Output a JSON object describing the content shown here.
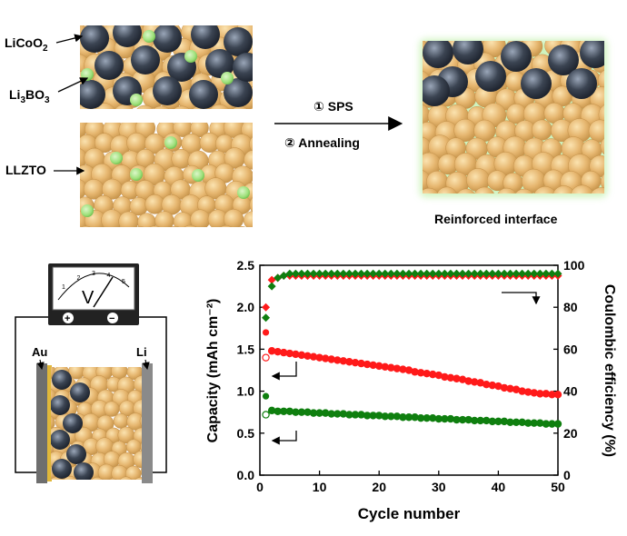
{
  "labels": {
    "licoo2": "LiCoO",
    "licoo2_sub": "2",
    "li3bo3_a": "Li",
    "li3bo3_b": "3",
    "li3bo3_c": "BO",
    "li3bo3_d": "3",
    "llzto": "LLZTO",
    "step1": "①  SPS",
    "step2": "②  Annealing",
    "reinforced": "Reinforced interface",
    "au": "Au",
    "li": "Li",
    "meter_v": "V",
    "meter_plus": "+",
    "meter_minus": "−",
    "meter_scale": [
      "1",
      "2",
      "3",
      "4",
      "5"
    ]
  },
  "colors": {
    "particle_gold": "#e6b66f",
    "particle_dark": "#3b4452",
    "particle_green": "#9ee07a",
    "interface_glow": "#a8ea8a",
    "gold_plate": "#e0b73a",
    "li_plate": "#8a8a8a",
    "series_red": "#ff1a1a",
    "series_green": "#0f7f0f"
  },
  "chart_data": {
    "type": "scatter",
    "xlabel": "Cycle number",
    "ylabel_left": "Capacity (mAh cm⁻²)",
    "ylabel_right": "Coulombic efficiency (%)",
    "xlim": [
      0,
      50
    ],
    "ylim_left": [
      0.0,
      2.5
    ],
    "ylim_right": [
      0,
      100
    ],
    "xticks": [
      "0",
      "10",
      "20",
      "30",
      "40",
      "50"
    ],
    "yticks_left": [
      "0.0",
      "0.5",
      "1.0",
      "1.5",
      "2.0",
      "2.5"
    ],
    "yticks_right": [
      "0",
      "20",
      "40",
      "60",
      "80",
      "100"
    ],
    "series": [
      {
        "color": "#ff1a1a",
        "axis": "left",
        "marker": "open-circle",
        "points": [
          [
            1,
            1.4
          ],
          [
            2,
            1.48
          ],
          [
            3,
            1.47
          ],
          [
            4,
            1.46
          ],
          [
            5,
            1.45
          ],
          [
            6,
            1.44
          ],
          [
            7,
            1.43
          ],
          [
            8,
            1.42
          ],
          [
            9,
            1.41
          ],
          [
            10,
            1.4
          ],
          [
            11,
            1.39
          ],
          [
            12,
            1.38
          ],
          [
            13,
            1.37
          ],
          [
            14,
            1.36
          ],
          [
            15,
            1.35
          ],
          [
            16,
            1.34
          ],
          [
            17,
            1.33
          ],
          [
            18,
            1.32
          ],
          [
            19,
            1.31
          ],
          [
            20,
            1.3
          ],
          [
            21,
            1.29
          ],
          [
            22,
            1.28
          ],
          [
            23,
            1.27
          ],
          [
            24,
            1.26
          ],
          [
            25,
            1.25
          ],
          [
            26,
            1.23
          ],
          [
            27,
            1.22
          ],
          [
            28,
            1.21
          ],
          [
            29,
            1.2
          ],
          [
            30,
            1.19
          ],
          [
            31,
            1.17
          ],
          [
            32,
            1.16
          ],
          [
            33,
            1.15
          ],
          [
            34,
            1.14
          ],
          [
            35,
            1.12
          ],
          [
            36,
            1.11
          ],
          [
            37,
            1.1
          ],
          [
            38,
            1.08
          ],
          [
            39,
            1.07
          ],
          [
            40,
            1.06
          ],
          [
            41,
            1.04
          ],
          [
            42,
            1.03
          ],
          [
            43,
            1.02
          ],
          [
            44,
            1.0
          ],
          [
            45,
            0.99
          ],
          [
            46,
            0.98
          ],
          [
            47,
            0.97
          ],
          [
            48,
            0.97
          ],
          [
            49,
            0.96
          ],
          [
            50,
            0.96
          ]
        ]
      },
      {
        "color": "#ff1a1a",
        "axis": "left",
        "marker": "filled-circle",
        "points": [
          [
            1,
            1.7
          ],
          [
            2,
            1.48
          ],
          [
            3,
            1.47
          ],
          [
            4,
            1.46
          ],
          [
            5,
            1.45
          ],
          [
            6,
            1.44
          ],
          [
            7,
            1.43
          ],
          [
            8,
            1.42
          ],
          [
            9,
            1.41
          ],
          [
            10,
            1.4
          ],
          [
            11,
            1.39
          ],
          [
            12,
            1.38
          ],
          [
            13,
            1.37
          ],
          [
            14,
            1.36
          ],
          [
            15,
            1.35
          ],
          [
            16,
            1.34
          ],
          [
            17,
            1.33
          ],
          [
            18,
            1.32
          ],
          [
            19,
            1.31
          ],
          [
            20,
            1.3
          ],
          [
            21,
            1.29
          ],
          [
            22,
            1.28
          ],
          [
            23,
            1.27
          ],
          [
            24,
            1.26
          ],
          [
            25,
            1.25
          ],
          [
            26,
            1.23
          ],
          [
            27,
            1.22
          ],
          [
            28,
            1.21
          ],
          [
            29,
            1.2
          ],
          [
            30,
            1.19
          ],
          [
            31,
            1.17
          ],
          [
            32,
            1.16
          ],
          [
            33,
            1.15
          ],
          [
            34,
            1.14
          ],
          [
            35,
            1.12
          ],
          [
            36,
            1.11
          ],
          [
            37,
            1.1
          ],
          [
            38,
            1.08
          ],
          [
            39,
            1.07
          ],
          [
            40,
            1.06
          ],
          [
            41,
            1.04
          ],
          [
            42,
            1.03
          ],
          [
            43,
            1.02
          ],
          [
            44,
            1.0
          ],
          [
            45,
            0.99
          ],
          [
            46,
            0.98
          ],
          [
            47,
            0.97
          ],
          [
            48,
            0.97
          ],
          [
            49,
            0.96
          ],
          [
            50,
            0.96
          ]
        ]
      },
      {
        "color": "#0f7f0f",
        "axis": "left",
        "marker": "open-circle",
        "points": [
          [
            1,
            0.72
          ],
          [
            2,
            0.77
          ],
          [
            3,
            0.76
          ],
          [
            4,
            0.76
          ],
          [
            5,
            0.76
          ],
          [
            6,
            0.75
          ],
          [
            7,
            0.75
          ],
          [
            8,
            0.75
          ],
          [
            9,
            0.74
          ],
          [
            10,
            0.74
          ],
          [
            11,
            0.74
          ],
          [
            12,
            0.73
          ],
          [
            13,
            0.73
          ],
          [
            14,
            0.73
          ],
          [
            15,
            0.72
          ],
          [
            16,
            0.72
          ],
          [
            17,
            0.72
          ],
          [
            18,
            0.71
          ],
          [
            19,
            0.71
          ],
          [
            20,
            0.71
          ],
          [
            21,
            0.7
          ],
          [
            22,
            0.7
          ],
          [
            23,
            0.7
          ],
          [
            24,
            0.69
          ],
          [
            25,
            0.69
          ],
          [
            26,
            0.69
          ],
          [
            27,
            0.68
          ],
          [
            28,
            0.68
          ],
          [
            29,
            0.68
          ],
          [
            30,
            0.67
          ],
          [
            31,
            0.67
          ],
          [
            32,
            0.67
          ],
          [
            33,
            0.66
          ],
          [
            34,
            0.66
          ],
          [
            35,
            0.66
          ],
          [
            36,
            0.65
          ],
          [
            37,
            0.65
          ],
          [
            38,
            0.65
          ],
          [
            39,
            0.64
          ],
          [
            40,
            0.64
          ],
          [
            41,
            0.64
          ],
          [
            42,
            0.63
          ],
          [
            43,
            0.63
          ],
          [
            44,
            0.63
          ],
          [
            45,
            0.62
          ],
          [
            46,
            0.62
          ],
          [
            47,
            0.62
          ],
          [
            48,
            0.61
          ],
          [
            49,
            0.61
          ],
          [
            50,
            0.61
          ]
        ]
      },
      {
        "color": "#0f7f0f",
        "axis": "left",
        "marker": "filled-circle",
        "points": [
          [
            1,
            0.94
          ],
          [
            2,
            0.77
          ],
          [
            3,
            0.76
          ],
          [
            4,
            0.76
          ],
          [
            5,
            0.76
          ],
          [
            6,
            0.75
          ],
          [
            7,
            0.75
          ],
          [
            8,
            0.75
          ],
          [
            9,
            0.74
          ],
          [
            10,
            0.74
          ],
          [
            11,
            0.74
          ],
          [
            12,
            0.73
          ],
          [
            13,
            0.73
          ],
          [
            14,
            0.73
          ],
          [
            15,
            0.72
          ],
          [
            16,
            0.72
          ],
          [
            17,
            0.72
          ],
          [
            18,
            0.71
          ],
          [
            19,
            0.71
          ],
          [
            20,
            0.71
          ],
          [
            21,
            0.7
          ],
          [
            22,
            0.7
          ],
          [
            23,
            0.7
          ],
          [
            24,
            0.69
          ],
          [
            25,
            0.69
          ],
          [
            26,
            0.69
          ],
          [
            27,
            0.68
          ],
          [
            28,
            0.68
          ],
          [
            29,
            0.68
          ],
          [
            30,
            0.67
          ],
          [
            31,
            0.67
          ],
          [
            32,
            0.67
          ],
          [
            33,
            0.66
          ],
          [
            34,
            0.66
          ],
          [
            35,
            0.66
          ],
          [
            36,
            0.65
          ],
          [
            37,
            0.65
          ],
          [
            38,
            0.65
          ],
          [
            39,
            0.64
          ],
          [
            40,
            0.64
          ],
          [
            41,
            0.64
          ],
          [
            42,
            0.63
          ],
          [
            43,
            0.63
          ],
          [
            44,
            0.63
          ],
          [
            45,
            0.62
          ],
          [
            46,
            0.62
          ],
          [
            47,
            0.62
          ],
          [
            48,
            0.61
          ],
          [
            49,
            0.61
          ],
          [
            50,
            0.61
          ]
        ]
      },
      {
        "color": "#ff1a1a",
        "axis": "right",
        "marker": "diamond",
        "points": [
          [
            1,
            80
          ],
          [
            2,
            93
          ],
          [
            3,
            94
          ],
          [
            4,
            95
          ],
          [
            5,
            95
          ],
          [
            6,
            95
          ],
          [
            7,
            95
          ],
          [
            8,
            95
          ],
          [
            9,
            95
          ],
          [
            10,
            95
          ],
          [
            11,
            95
          ],
          [
            12,
            95
          ],
          [
            13,
            95
          ],
          [
            14,
            95
          ],
          [
            15,
            95
          ],
          [
            16,
            95
          ],
          [
            17,
            95
          ],
          [
            18,
            95
          ],
          [
            19,
            95
          ],
          [
            20,
            95
          ],
          [
            21,
            95
          ],
          [
            22,
            95
          ],
          [
            23,
            95
          ],
          [
            24,
            95
          ],
          [
            25,
            95
          ],
          [
            26,
            95
          ],
          [
            27,
            95
          ],
          [
            28,
            95
          ],
          [
            29,
            95
          ],
          [
            30,
            95
          ],
          [
            31,
            95
          ],
          [
            32,
            95
          ],
          [
            33,
            95
          ],
          [
            34,
            95
          ],
          [
            35,
            95
          ],
          [
            36,
            95
          ],
          [
            37,
            95
          ],
          [
            38,
            95
          ],
          [
            39,
            95
          ],
          [
            40,
            95
          ],
          [
            41,
            95
          ],
          [
            42,
            95
          ],
          [
            43,
            95
          ],
          [
            44,
            95
          ],
          [
            45,
            95
          ],
          [
            46,
            95
          ],
          [
            47,
            95
          ],
          [
            48,
            95
          ],
          [
            49,
            95
          ],
          [
            50,
            95
          ]
        ]
      },
      {
        "color": "#0f7f0f",
        "axis": "right",
        "marker": "diamond",
        "points": [
          [
            1,
            75
          ],
          [
            2,
            90
          ],
          [
            3,
            94
          ],
          [
            4,
            95
          ],
          [
            5,
            96
          ],
          [
            6,
            96
          ],
          [
            7,
            96
          ],
          [
            8,
            96
          ],
          [
            9,
            96
          ],
          [
            10,
            96
          ],
          [
            11,
            96
          ],
          [
            12,
            96
          ],
          [
            13,
            96
          ],
          [
            14,
            96
          ],
          [
            15,
            96
          ],
          [
            16,
            96
          ],
          [
            17,
            96
          ],
          [
            18,
            96
          ],
          [
            19,
            96
          ],
          [
            20,
            96
          ],
          [
            21,
            96
          ],
          [
            22,
            96
          ],
          [
            23,
            96
          ],
          [
            24,
            96
          ],
          [
            25,
            96
          ],
          [
            26,
            96
          ],
          [
            27,
            96
          ],
          [
            28,
            96
          ],
          [
            29,
            96
          ],
          [
            30,
            96
          ],
          [
            31,
            96
          ],
          [
            32,
            96
          ],
          [
            33,
            96
          ],
          [
            34,
            96
          ],
          [
            35,
            96
          ],
          [
            36,
            96
          ],
          [
            37,
            96
          ],
          [
            38,
            96
          ],
          [
            39,
            96
          ],
          [
            40,
            96
          ],
          [
            41,
            96
          ],
          [
            42,
            96
          ],
          [
            43,
            96
          ],
          [
            44,
            96
          ],
          [
            45,
            96
          ],
          [
            46,
            96
          ],
          [
            47,
            96
          ],
          [
            48,
            96
          ],
          [
            49,
            96
          ],
          [
            50,
            96
          ]
        ]
      }
    ]
  }
}
